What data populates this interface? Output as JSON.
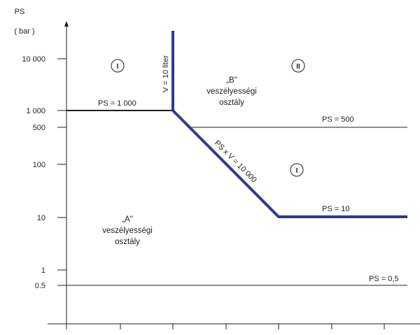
{
  "axis": {
    "title": "PS",
    "unit": "( bar )"
  },
  "y_ticks": [
    "10 000",
    "1 000",
    "500",
    "100",
    "10",
    "1",
    "0.5"
  ],
  "curves": {
    "ps_1000": "PS = 1 000",
    "ps_500": "PS = 500",
    "ps_10": "PS = 10",
    "ps_05": "PS = 0,5",
    "v_10": "V = 10 liter",
    "ps_v": "PS x V = 10 000"
  },
  "regions": {
    "a_line1": "„A\"",
    "a_line2": "veszélyességi",
    "a_line3": "osztály",
    "b_line1": "„B\"",
    "b_line2": "veszélyességi",
    "b_line3": "osztály"
  },
  "roman_marks": {
    "top_left": "I",
    "top_right": "II",
    "middle_right": "I"
  },
  "colors": {
    "boundary": "#2e3a8c",
    "lines": "#1e1e1e"
  }
}
